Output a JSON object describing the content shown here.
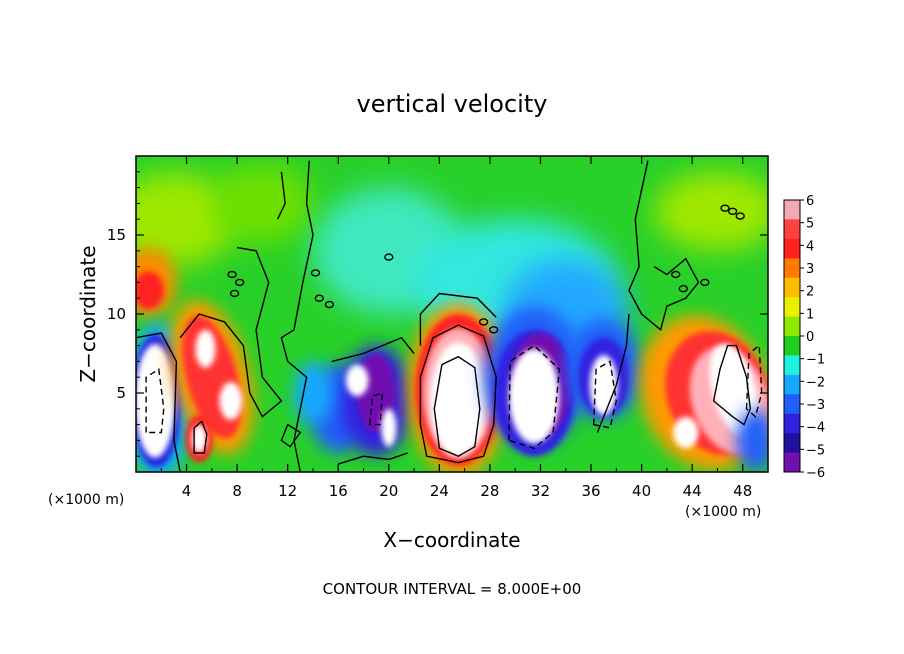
{
  "chart_data": {
    "type": "heatmap",
    "title": "vertical velocity",
    "xlabel": "X−coordinate",
    "ylabel": "Z−coordinate",
    "x_unit_left": "(×1000 m)",
    "x_unit_right": "(×1000 m)",
    "xlim": [
      0,
      50
    ],
    "ylim": [
      0,
      20
    ],
    "x_ticks": [
      "4",
      "8",
      "12",
      "16",
      "20",
      "24",
      "28",
      "32",
      "36",
      "40",
      "44",
      "48"
    ],
    "x_tick_values": [
      4,
      8,
      12,
      16,
      20,
      24,
      28,
      32,
      36,
      40,
      44,
      48
    ],
    "y_ticks": [
      "5",
      "10",
      "15"
    ],
    "y_tick_values": [
      5,
      10,
      15
    ],
    "footnote": "CONTOUR INTERVAL = 8.000E+00",
    "colorbar": {
      "labels": [
        "6",
        "5",
        "4",
        "3",
        "2",
        "1",
        "0",
        "−1",
        "−2",
        "−3",
        "−4",
        "−5",
        "−6"
      ],
      "values": [
        6,
        5,
        4,
        3,
        2,
        1,
        0,
        -1,
        -2,
        -3,
        -4,
        -5,
        -6
      ],
      "colors": [
        "#f4a8b4",
        "#ff4040",
        "#ff2020",
        "#ff7a00",
        "#ffbf00",
        "#e8f000",
        "#8ee800",
        "#20d020",
        "#20f0e0",
        "#18a8ff",
        "#2060f8",
        "#3020e0",
        "#2010a0",
        "#7010b0"
      ]
    },
    "features": [
      {
        "kind": "updraft",
        "x": 25.5,
        "z": 5,
        "peak": ">8"
      },
      {
        "kind": "updraft",
        "x": 47,
        "z": 5.5,
        "peak": ">8"
      },
      {
        "kind": "updraft",
        "x": 5,
        "z": 6,
        "peak": ">8"
      },
      {
        "kind": "updraft",
        "x": 1,
        "z": 11.5,
        "peak": 4
      },
      {
        "kind": "downdraft",
        "x": 1.5,
        "z": 4.5,
        "peak": "<-8"
      },
      {
        "kind": "downdraft",
        "x": 31.5,
        "z": 5,
        "peak": "<-8"
      },
      {
        "kind": "downdraft",
        "x": 37,
        "z": 6,
        "peak": -6
      },
      {
        "kind": "downdraft",
        "x": 18.5,
        "z": 4.5,
        "peak": "<-8"
      }
    ]
  }
}
